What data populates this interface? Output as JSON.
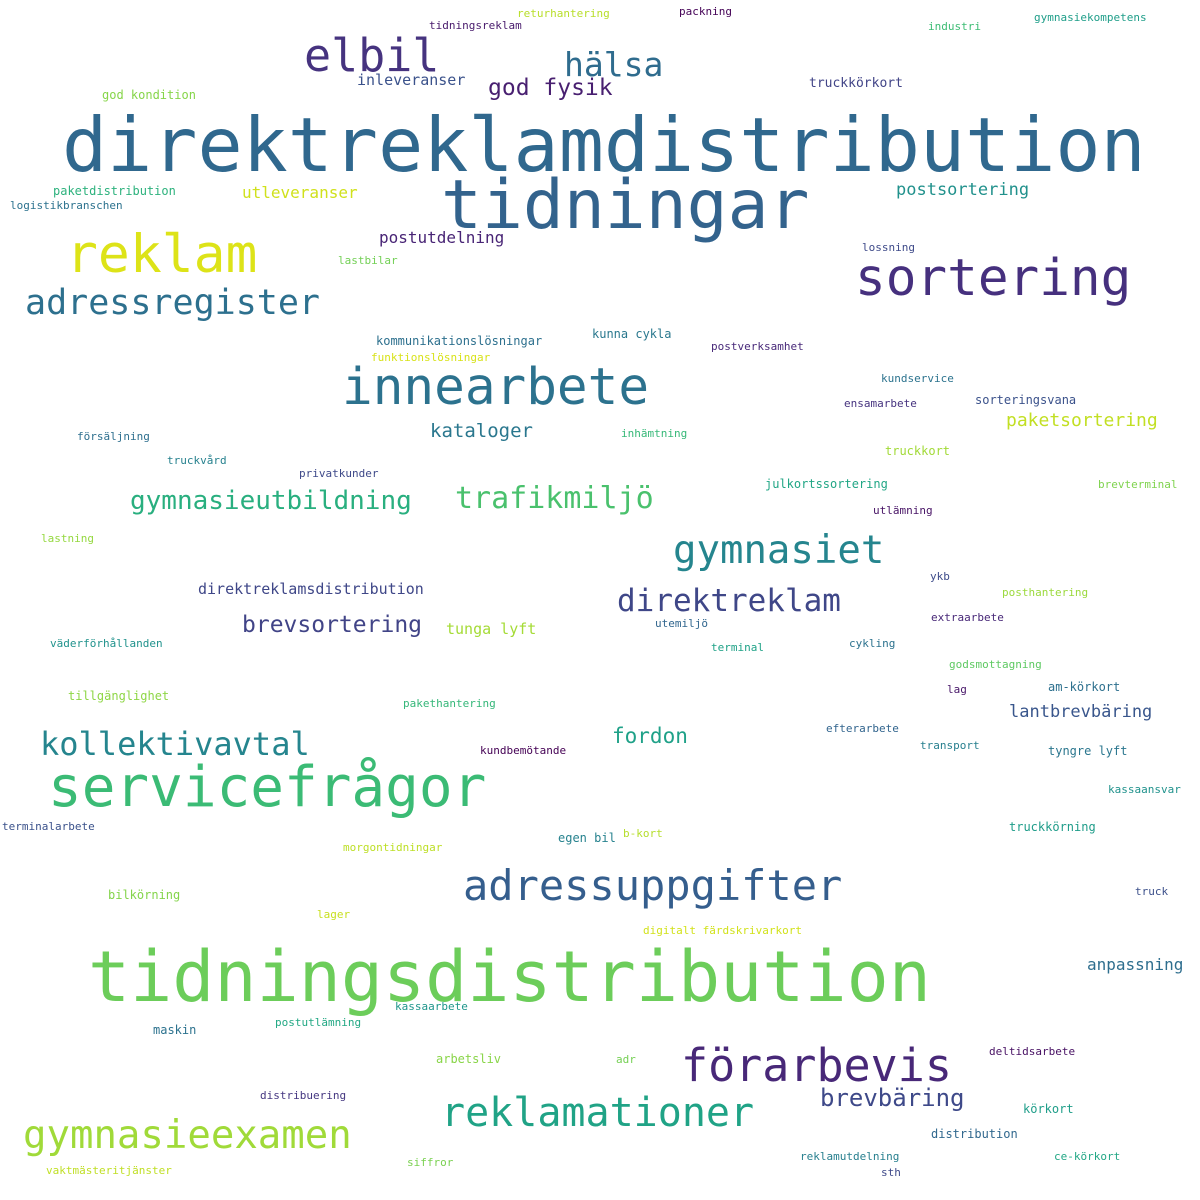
{
  "words": [
    {
      "text": "direktreklamdistribution",
      "color": "#30688e"
    },
    {
      "text": "tidningsdistribution",
      "color": "#6ccd5a"
    },
    {
      "text": "tidningar",
      "color": "#33638d"
    },
    {
      "text": "servicefrågor",
      "color": "#3bbb75"
    },
    {
      "text": "innearbete",
      "color": "#2c728e"
    },
    {
      "text": "sortering",
      "color": "#46307e"
    },
    {
      "text": "adressuppgifter",
      "color": "#355e8d"
    },
    {
      "text": "reklam",
      "color": "#dde318"
    },
    {
      "text": "förarbevis",
      "color": "#482878"
    },
    {
      "text": "elbil",
      "color": "#46337f"
    },
    {
      "text": "reklamationer",
      "color": "#20a386"
    },
    {
      "text": "gymnasieexamen",
      "color": "#a0da39"
    },
    {
      "text": "adressregister",
      "color": "#2d708e"
    },
    {
      "text": "gymnasiet",
      "color": "#25858e"
    },
    {
      "text": "direktreklam",
      "color": "#3f4788"
    },
    {
      "text": "kollektivavtal",
      "color": "#25858e"
    },
    {
      "text": "trafikmiljö",
      "color": "#4ac16d"
    },
    {
      "text": "gymnasieutbildning",
      "color": "#29af7f"
    },
    {
      "text": "hälsa",
      "color": "#2f6c8e"
    },
    {
      "text": "brevbäring",
      "color": "#3e4989"
    },
    {
      "text": "brevsortering",
      "color": "#414487"
    },
    {
      "text": "god fysik",
      "color": "#481f70"
    },
    {
      "text": "fordon",
      "color": "#1fa188"
    },
    {
      "text": "kataloger",
      "color": "#2a778e"
    },
    {
      "text": "paketsortering",
      "color": "#c2df23"
    },
    {
      "text": "lantbrevbäring",
      "color": "#39568c"
    },
    {
      "text": "postsortering",
      "color": "#21918c"
    },
    {
      "text": "anpassning",
      "color": "#2e6e8e"
    },
    {
      "text": "utleveranser",
      "color": "#d0e11c"
    },
    {
      "text": "postutdelning",
      "color": "#482475"
    },
    {
      "text": "inleveranser",
      "color": "#3b528b"
    },
    {
      "text": "direktreklamsdistribution",
      "color": "#3f4788"
    },
    {
      "text": "tunga lyft",
      "color": "#a5db36"
    },
    {
      "text": "truckkörkort",
      "color": "#414487"
    },
    {
      "text": "god kondition",
      "color": "#86d549"
    },
    {
      "text": "paketdistribution",
      "color": "#2db27d"
    },
    {
      "text": "logistikbranschen",
      "color": "#2c728e"
    },
    {
      "text": "lossning",
      "color": "#3e4a89"
    },
    {
      "text": "lastbilar",
      "color": "#73d056"
    },
    {
      "text": "kommunikationslösningar",
      "color": "#2d708e"
    },
    {
      "text": "kunna cykla",
      "color": "#2a788e"
    },
    {
      "text": "funktionslösningar",
      "color": "#d8e219"
    },
    {
      "text": "postverksamhet",
      "color": "#482979"
    },
    {
      "text": "kundservice",
      "color": "#2c738e"
    },
    {
      "text": "sorteringsvana",
      "color": "#3b528b"
    },
    {
      "text": "ensamarbete",
      "color": "#46337f"
    },
    {
      "text": "försäljning",
      "color": "#2e6f8e"
    },
    {
      "text": "inhämtning",
      "color": "#37b878"
    },
    {
      "text": "truckvård",
      "color": "#26818e"
    },
    {
      "text": "privatkunder",
      "color": "#3e4989"
    },
    {
      "text": "truckkort",
      "color": "#a2da37"
    },
    {
      "text": "julkortssortering",
      "color": "#21a685"
    },
    {
      "text": "brevterminal",
      "color": "#7fd34e"
    },
    {
      "text": "utlämning",
      "color": "#471365"
    },
    {
      "text": "lastning",
      "color": "#95d840"
    },
    {
      "text": "ykb",
      "color": "#3e4c8a"
    },
    {
      "text": "posthantering",
      "color": "#9bd93c"
    },
    {
      "text": "utemiljö",
      "color": "#31668e"
    },
    {
      "text": "extraarbete",
      "color": "#482878"
    },
    {
      "text": "väderförhållanden",
      "color": "#20928c"
    },
    {
      "text": "terminal",
      "color": "#1fa287"
    },
    {
      "text": "cykling",
      "color": "#2c728e"
    },
    {
      "text": "godsmottagning",
      "color": "#5ec962"
    },
    {
      "text": "tillgänglighet",
      "color": "#8ed645"
    },
    {
      "text": "lag",
      "color": "#481769"
    },
    {
      "text": "am-körkort",
      "color": "#2d708e"
    },
    {
      "text": "pakethantering",
      "color": "#35b779"
    },
    {
      "text": "efterarbete",
      "color": "#32658e"
    },
    {
      "text": "kundbemötande",
      "color": "#440154"
    },
    {
      "text": "transport",
      "color": "#277f8e"
    },
    {
      "text": "tyngre lyft",
      "color": "#2a768e"
    },
    {
      "text": "kassaansvar",
      "color": "#20928c"
    },
    {
      "text": "terminalarbete",
      "color": "#3b528b"
    },
    {
      "text": "egen bil",
      "color": "#26828e"
    },
    {
      "text": "b-kort",
      "color": "#b5de2b"
    },
    {
      "text": "truckkörning",
      "color": "#1e9c89"
    },
    {
      "text": "morgontidningar",
      "color": "#bddf26"
    },
    {
      "text": "bilkörning",
      "color": "#84d44b"
    },
    {
      "text": "truck",
      "color": "#3c508b"
    },
    {
      "text": "lager",
      "color": "#c8e020"
    },
    {
      "text": "digitalt färdskrivarkort",
      "color": "#d2e21b"
    },
    {
      "text": "maskin",
      "color": "#2c728e"
    },
    {
      "text": "postutlämning",
      "color": "#22a884"
    },
    {
      "text": "kassaarbete",
      "color": "#1f968b"
    },
    {
      "text": "arbetsliv",
      "color": "#89d548"
    },
    {
      "text": "adr",
      "color": "#75d054"
    },
    {
      "text": "deltidsarbete",
      "color": "#471063"
    },
    {
      "text": "distribuering",
      "color": "#453781"
    },
    {
      "text": "körkort",
      "color": "#1f9e89"
    },
    {
      "text": "distribution",
      "color": "#31688e"
    },
    {
      "text": "vaktmästeritjänster",
      "color": "#c0df25"
    },
    {
      "text": "siffror",
      "color": "#7ad151"
    },
    {
      "text": "reklamutdelning",
      "color": "#277f8e"
    },
    {
      "text": "ce-körkort",
      "color": "#22a785"
    },
    {
      "text": "sth",
      "color": "#3e4989"
    },
    {
      "text": "tidningsreklam",
      "color": "#481a6c"
    },
    {
      "text": "returhantering",
      "color": "#b8de29"
    },
    {
      "text": "packning",
      "color": "#440256"
    },
    {
      "text": "industri",
      "color": "#3dbc74"
    },
    {
      "text": "gymnasiekompetens",
      "color": "#1f9e89"
    }
  ]
}
